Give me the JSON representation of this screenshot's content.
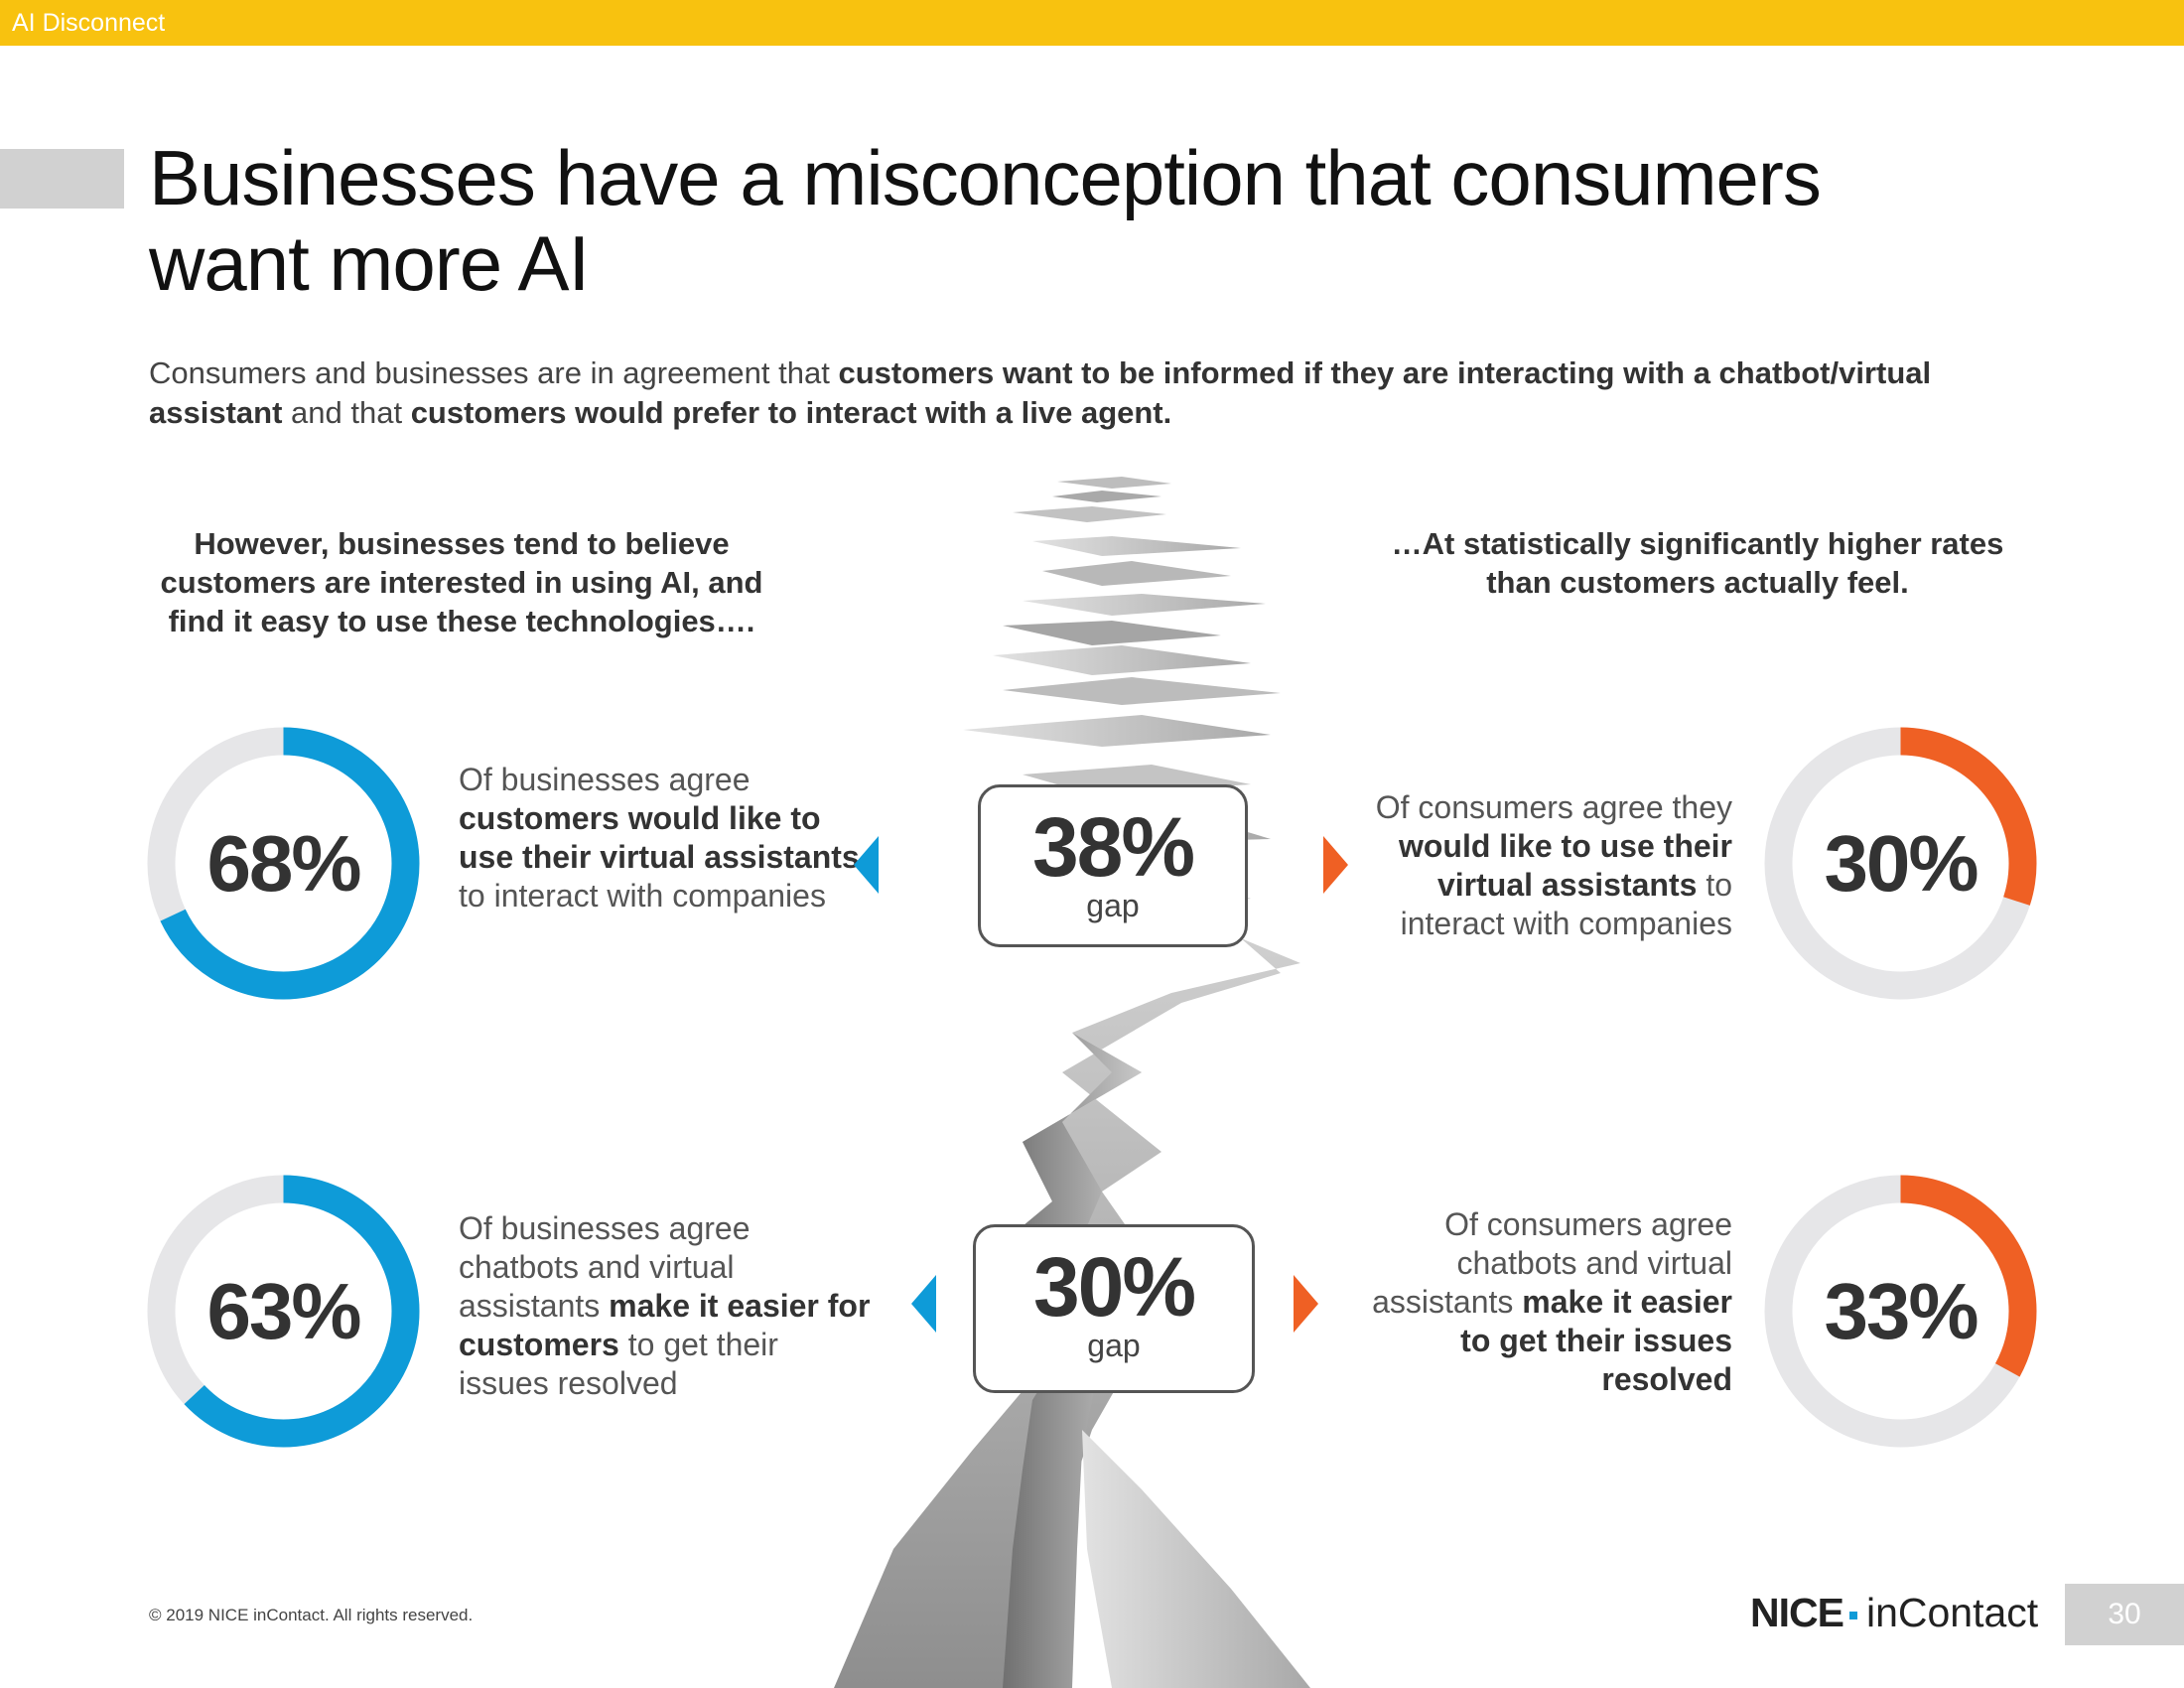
{
  "header": {
    "section_label": "AI Disconnect"
  },
  "title": {
    "line1": "Businesses have a misconception that consumers",
    "line2": "want more AI"
  },
  "intro": {
    "p1": "Consumers and businesses are in agreement that ",
    "b1": "customers want to be informed if they are interacting with a chatbot/virtual assistant",
    "p2": " and that ",
    "b2": "customers would prefer to interact with a live agent."
  },
  "left_heading": "However, businesses tend to believe customers are interested in using AI, and find it easy to use these technologies….",
  "right_heading": "…At statistically significantly higher rates than customers actually feel.",
  "stats": [
    {
      "business": {
        "value": "68%",
        "fraction": 0.68,
        "t1": "Of businesses agree ",
        "b1": "customers would like to use their virtual assistants",
        "t2": " to interact with companies",
        "t3": ""
      },
      "gap": {
        "value": "38%",
        "label": "gap"
      },
      "consumer": {
        "value": "30%",
        "fraction": 0.3,
        "t1": "Of consumers agree they ",
        "b1": "would like to use their virtual assistants",
        "t2": " to interact with companies",
        "b2": ""
      }
    },
    {
      "business": {
        "value": "63%",
        "fraction": 0.63,
        "t1": "Of businesses agree chatbots and virtual assistants ",
        "b1": "make it easier for customers",
        "t2": " to get their issues resolved",
        "t3": ""
      },
      "gap": {
        "value": "30%",
        "label": "gap"
      },
      "consumer": {
        "value": "33%",
        "fraction": 0.33,
        "t1": "Of consumers agree chatbots and virtual assistants ",
        "b1": "make it easier to get their issues resolved",
        "t2": "",
        "b2": ""
      }
    }
  ],
  "colors": {
    "business": "#0e9bd8",
    "consumer": "#ef6024",
    "track": "#e6e6e8",
    "header_bar": "#f8c20f"
  },
  "footer": {
    "copyright": "© 2019 NICE inContact. All rights reserved.",
    "logo_nice": "NICE",
    "logo_incontact": "inContact",
    "page_number": "30"
  }
}
